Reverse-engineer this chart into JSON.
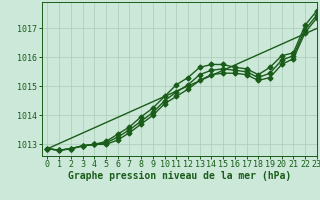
{
  "xlabel": "Graphe pression niveau de la mer (hPa)",
  "xlim": [
    -0.5,
    23
  ],
  "ylim": [
    1012.6,
    1017.9
  ],
  "yticks": [
    1013,
    1014,
    1015,
    1016,
    1017
  ],
  "xticks": [
    0,
    1,
    2,
    3,
    4,
    5,
    6,
    7,
    8,
    9,
    10,
    11,
    12,
    13,
    14,
    15,
    16,
    17,
    18,
    19,
    20,
    21,
    22,
    23
  ],
  "bg_color": "#cce8d8",
  "grid_color": "#aaccb8",
  "line_color": "#1a5c1a",
  "line_width": 1.0,
  "marker": "D",
  "marker_size": 2.5,
  "x": [
    0,
    1,
    2,
    3,
    4,
    5,
    6,
    7,
    8,
    9,
    10,
    11,
    12,
    13,
    14,
    15,
    16,
    17,
    18,
    19,
    20,
    21,
    22,
    23
  ],
  "y_line1": [
    1012.85,
    1012.8,
    1012.85,
    1012.95,
    1013.0,
    1013.1,
    1013.35,
    1013.6,
    1013.95,
    1014.25,
    1014.65,
    1015.05,
    1015.3,
    1015.65,
    1015.75,
    1015.75,
    1015.65,
    1015.6,
    1015.4,
    1015.65,
    1016.05,
    1016.15,
    1017.1,
    1017.6
  ],
  "y_line2": [
    1012.85,
    1012.8,
    1012.85,
    1012.95,
    1013.0,
    1013.05,
    1013.25,
    1013.5,
    1013.8,
    1014.1,
    1014.5,
    1014.8,
    1015.05,
    1015.4,
    1015.55,
    1015.6,
    1015.55,
    1015.5,
    1015.3,
    1015.45,
    1015.9,
    1016.05,
    1016.95,
    1017.45
  ],
  "y_line3": [
    1012.85,
    1012.8,
    1012.85,
    1012.95,
    1013.0,
    1013.0,
    1013.15,
    1013.4,
    1013.7,
    1014.0,
    1014.4,
    1014.65,
    1014.9,
    1015.2,
    1015.4,
    1015.45,
    1015.45,
    1015.4,
    1015.2,
    1015.3,
    1015.75,
    1015.95,
    1016.85,
    1017.35
  ],
  "y_straight": [
    1012.85,
    1013.03,
    1013.21,
    1013.39,
    1013.57,
    1013.75,
    1013.93,
    1014.11,
    1014.29,
    1014.47,
    1014.65,
    1014.83,
    1015.01,
    1015.19,
    1015.37,
    1015.55,
    1015.73,
    1015.91,
    1016.09,
    1016.27,
    1016.45,
    1016.63,
    1016.81,
    1016.99
  ],
  "tick_fontsize": 6.0,
  "xlabel_fontsize": 7.0
}
